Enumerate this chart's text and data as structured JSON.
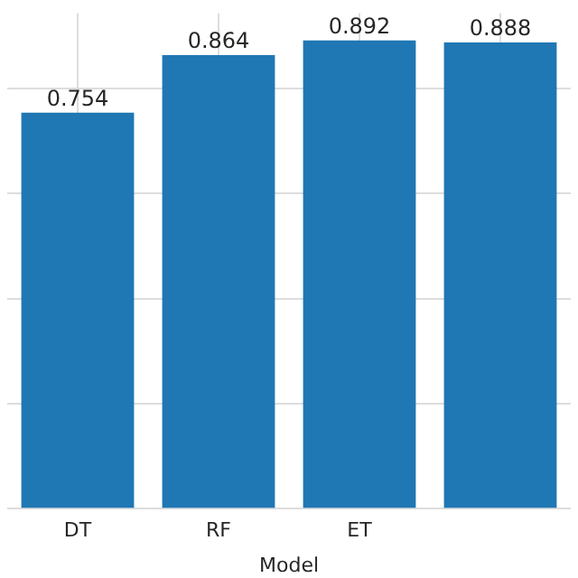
{
  "chart_data": {
    "type": "bar",
    "xlabel": "Model",
    "categories": [
      "DT",
      "RF",
      "ET",
      null
    ],
    "values": [
      0.754,
      0.864,
      0.892,
      0.888
    ],
    "color": "#1f77b4",
    "ylim": [
      0,
      0.944
    ],
    "yticks": [
      {
        "value": 0,
        "label": null
      },
      {
        "value": 0.2,
        "label": null
      },
      {
        "value": 0.4,
        "label": null
      },
      {
        "value": 0.6,
        "label": null
      },
      {
        "value": 0.8,
        "label": null
      }
    ],
    "grid": true,
    "data_labels": true,
    "legend": false
  }
}
